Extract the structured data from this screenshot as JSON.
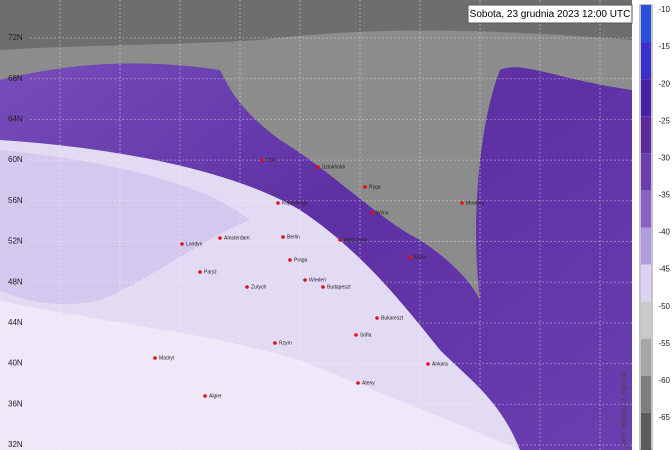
{
  "header": {
    "title": "Sobota, 23 grudnia 2023 12:00 UTC"
  },
  "latitudes": [
    "72N",
    "68N",
    "64N",
    "60N",
    "56N",
    "52N",
    "48N",
    "44N",
    "40N",
    "36N",
    "32N"
  ],
  "cities": [
    "Oslo",
    "Sztokholm",
    "Ryga",
    "Wilno",
    "Moskwa",
    "Kopenhaga",
    "Amsterdam",
    "Londyn",
    "Berlin",
    "Warszawa",
    "Kijów",
    "Praga",
    "Paryż",
    "Wiedeń",
    "Budapeszt",
    "Zurych",
    "Bukareszt",
    "Sofia",
    "Rzym",
    "Ankara",
    "Ateny",
    "Madryt",
    "Algier"
  ],
  "colorbar": {
    "levels": [
      -10,
      -15,
      -20,
      -25,
      -30,
      -35,
      -40,
      -45,
      -50,
      -55,
      -60,
      -65
    ],
    "colors": [
      "#2a4fd8",
      "#3b2fc9",
      "#4a1fa8",
      "#5a2a9e",
      "#6b3db0",
      "#8a63c4",
      "#b39be0",
      "#ddd2f2",
      "#c9c9c9",
      "#a6a6a6",
      "#7e7e7e",
      "#5c5c5c"
    ]
  },
  "credit": "prof. Mariusz J. Figurski"
}
